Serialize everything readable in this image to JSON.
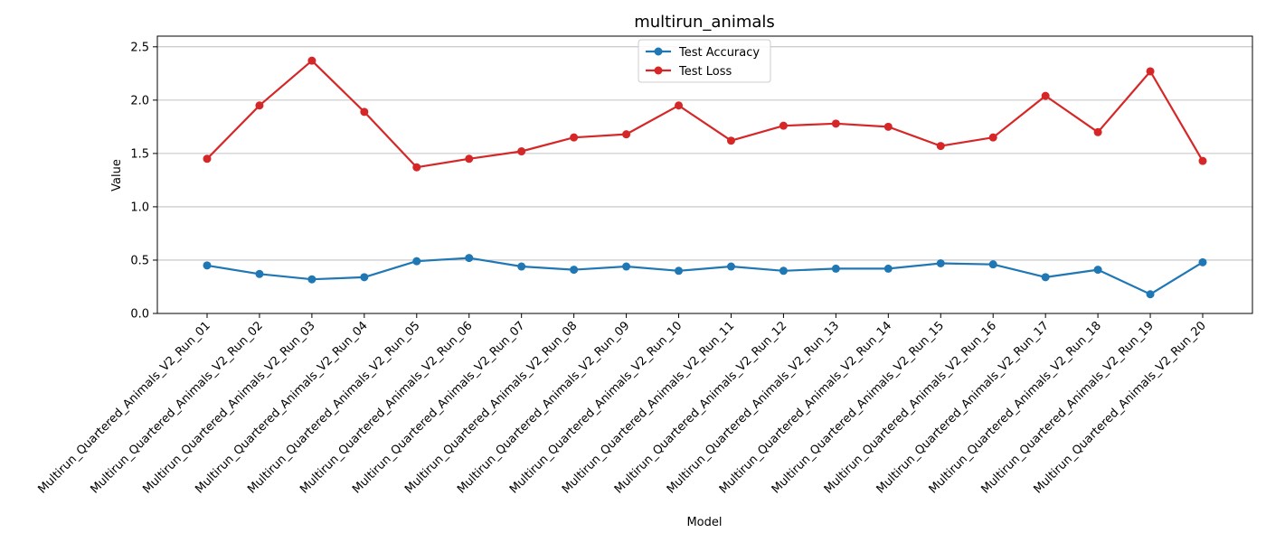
{
  "chart_data": {
    "type": "line",
    "title": "multirun_animals",
    "xlabel": "Model",
    "ylabel": "Value",
    "ylim": [
      0,
      2.6
    ],
    "yticks": [
      "0.0",
      "0.5",
      "1.0",
      "1.5",
      "2.0",
      "2.5"
    ],
    "grid": "horizontal",
    "legend_position": "top-center",
    "categories": [
      "Multirun_Quartered_Animals_V2_Run_01",
      "Multirun_Quartered_Animals_V2_Run_02",
      "Multirun_Quartered_Animals_V2_Run_03",
      "Multirun_Quartered_Animals_V2_Run_04",
      "Multirun_Quartered_Animals_V2_Run_05",
      "Multirun_Quartered_Animals_V2_Run_06",
      "Multirun_Quartered_Animals_V2_Run_07",
      "Multirun_Quartered_Animals_V2_Run_08",
      "Multirun_Quartered_Animals_V2_Run_09",
      "Multirun_Quartered_Animals_V2_Run_10",
      "Multirun_Quartered_Animals_V2_Run_11",
      "Multirun_Quartered_Animals_V2_Run_12",
      "Multirun_Quartered_Animals_V2_Run_13",
      "Multirun_Quartered_Animals_V2_Run_14",
      "Multirun_Quartered_Animals_V2_Run_15",
      "Multirun_Quartered_Animals_V2_Run_16",
      "Multirun_Quartered_Animals_V2_Run_17",
      "Multirun_Quartered_Animals_V2_Run_18",
      "Multirun_Quartered_Animals_V2_Run_19",
      "Multirun_Quartered_Animals_V2_Run_20"
    ],
    "series": [
      {
        "name": "Test Accuracy",
        "color": "#1f77b4",
        "values": [
          0.45,
          0.37,
          0.32,
          0.34,
          0.49,
          0.52,
          0.44,
          0.41,
          0.44,
          0.4,
          0.44,
          0.4,
          0.42,
          0.42,
          0.47,
          0.46,
          0.34,
          0.41,
          0.18,
          0.48
        ]
      },
      {
        "name": "Test Loss",
        "color": "#d62728",
        "values": [
          1.45,
          1.95,
          2.37,
          1.89,
          1.37,
          1.45,
          1.52,
          1.65,
          1.68,
          1.95,
          1.62,
          1.76,
          1.78,
          1.75,
          1.57,
          1.65,
          2.04,
          1.7,
          2.27,
          1.43
        ]
      }
    ]
  }
}
